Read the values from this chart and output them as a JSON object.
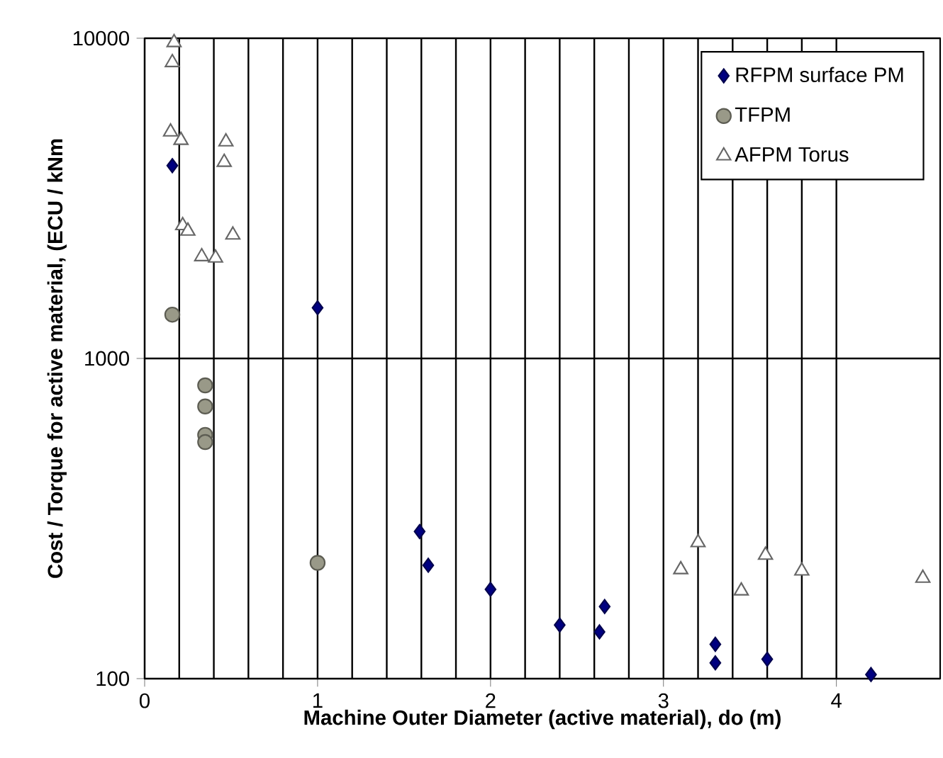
{
  "chart_data": {
    "type": "scatter",
    "xlabel": "Machine Outer Diameter (active material), do (m)",
    "ylabel": "Cost / Torque for active material, (ECU / kNm",
    "xlim": [
      0,
      4.6
    ],
    "ylim": [
      100,
      10000
    ],
    "xticks": [
      0,
      1,
      2,
      3,
      4
    ],
    "yticks": [
      100,
      1000,
      10000
    ],
    "log": "y",
    "grid": true,
    "legend": "top right",
    "series": [
      {
        "name": "RFPM surface PM",
        "color": "#000080",
        "marker": "diamond",
        "x": [
          0.16,
          1.0,
          1.59,
          1.64,
          2.0,
          2.4,
          2.63,
          2.66,
          3.3,
          3.3,
          3.6,
          4.2
        ],
        "values": [
          4000,
          1440,
          288,
          226,
          190,
          147,
          140,
          168,
          128,
          112,
          115,
          103
        ]
      },
      {
        "name": "TFPM",
        "color": "#999988",
        "marker": "circle",
        "x": [
          0.16,
          0.35,
          0.35,
          0.35,
          0.35,
          1.0
        ],
        "values": [
          1370,
          824,
          708,
          577,
          548,
          230
        ]
      },
      {
        "name": "AFPM Torus",
        "color": "#ffffff",
        "marker": "triangle",
        "x": [
          0.17,
          0.16,
          0.15,
          0.21,
          0.47,
          0.46,
          0.22,
          0.25,
          0.33,
          0.41,
          0.51,
          3.2,
          3.1,
          3.45,
          3.59,
          3.8,
          4.5
        ],
        "values": [
          9700,
          8400,
          5100,
          4800,
          4750,
          4100,
          2600,
          2500,
          2080,
          2060,
          2430,
          266,
          219,
          188,
          243,
          217,
          206
        ]
      }
    ]
  }
}
